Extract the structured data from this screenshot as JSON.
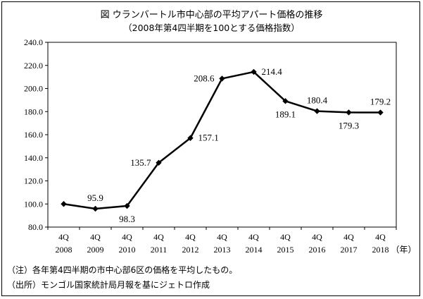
{
  "title": "図 ウランバートル市中心部の平均アパート価格の推移",
  "subtitle": "（2008年第4四半期を100とする価格指数）",
  "notes": [
    "（注）各年第4四半期の市中心部6区の価格を平均したもの。",
    "（出所）モンゴル国家統計局月報を基にジェトロ作成"
  ],
  "chart_data": {
    "type": "line",
    "categories": [
      "4Q\n2008",
      "4Q\n2009",
      "4Q\n2010",
      "4Q\n2011",
      "4Q\n2012",
      "4Q\n2013",
      "4Q\n2014",
      "4Q\n2015",
      "4Q\n2016",
      "4Q\n2017",
      "4Q\n2018"
    ],
    "category_quarters": [
      "4Q",
      "4Q",
      "4Q",
      "4Q",
      "4Q",
      "4Q",
      "4Q",
      "4Q",
      "4Q",
      "4Q",
      "4Q"
    ],
    "category_years": [
      "2008",
      "2009",
      "2010",
      "2011",
      "2012",
      "2013",
      "2014",
      "2015",
      "2016",
      "2017",
      "2018"
    ],
    "x_unit": "（年）",
    "series": [
      {
        "values": [
          100.0,
          95.9,
          98.3,
          135.7,
          157.1,
          208.6,
          214.4,
          189.1,
          180.4,
          179.3,
          179.2
        ],
        "data_labels": [
          "",
          "95.9",
          "98.3",
          "135.7",
          "157.1",
          "208.6",
          "214.4",
          "189.1",
          "180.4",
          "179.3",
          "179.2"
        ],
        "color": "#000000",
        "marker": "diamond"
      }
    ],
    "yticks": [
      "80.0",
      "100.0",
      "120.0",
      "140.0",
      "160.0",
      "180.0",
      "200.0",
      "220.0",
      "240.0"
    ],
    "ylim": [
      80,
      240
    ],
    "grid": false,
    "legend": "none"
  }
}
